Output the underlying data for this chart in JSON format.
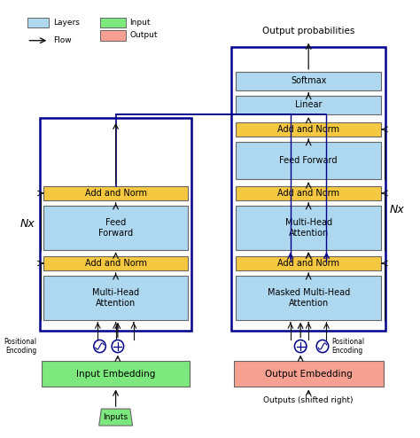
{
  "fig_width": 4.74,
  "fig_height": 4.94,
  "dpi": 100,
  "blue_box": "#add8f0",
  "yellow_box": "#f5c842",
  "green_box": "#7de87d",
  "pink_box": "#f5a090",
  "dark_blue": "#00008B",
  "arrow_color": "#111111",
  "title": "Output probabilities",
  "legend_layers": "Layers",
  "legend_flow": "Flow",
  "legend_input": "Input",
  "legend_output": "Output",
  "encoder_nx": "Nx",
  "decoder_nx": "Nx"
}
